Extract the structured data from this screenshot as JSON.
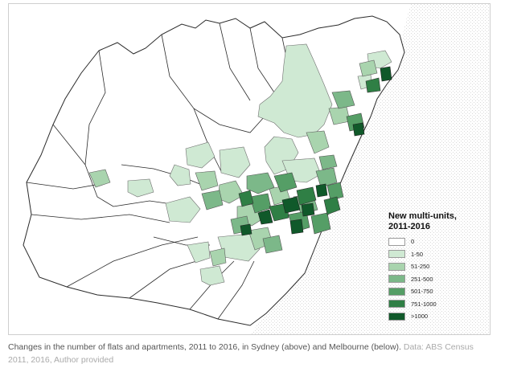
{
  "legend": {
    "title_line1": "New multi-units,",
    "title_line2": "2011-2016",
    "items": [
      {
        "label": "0",
        "color": "#ffffff"
      },
      {
        "label": "1-50",
        "color": "#cfe9d3"
      },
      {
        "label": "51-250",
        "color": "#a9d4ae"
      },
      {
        "label": "251-500",
        "color": "#7cb889"
      },
      {
        "label": "501-750",
        "color": "#559e66"
      },
      {
        "label": "751-1000",
        "color": "#2f7f45"
      },
      {
        "label": ">1000",
        "color": "#10592a"
      }
    ]
  },
  "caption": {
    "text": "Changes in the number of flats and apartments, 2011 to 2016, in Sydney (above) and Melbourne (below).",
    "source": "Data: ABS Census 2011, 2016, Author provided"
  }
}
